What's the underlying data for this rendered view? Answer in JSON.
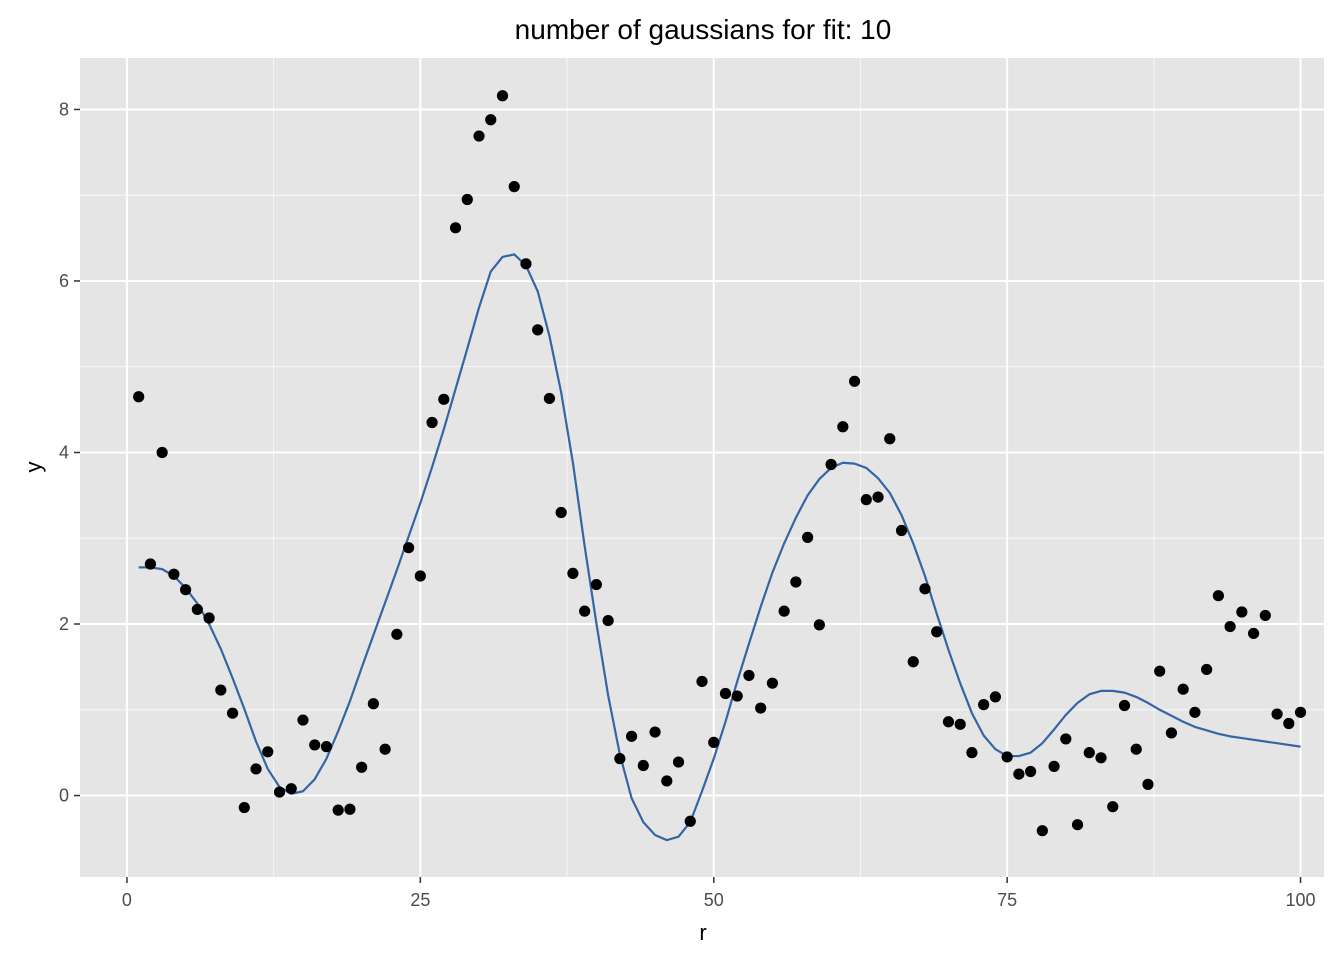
{
  "chart_data": {
    "type": "scatter",
    "title": "number of gaussians for fit: 10",
    "xlabel": "r",
    "ylabel": "y",
    "xlim": [
      -4,
      102
    ],
    "ylim": [
      -0.95,
      8.6
    ],
    "x_ticks": [
      0,
      25,
      50,
      75,
      100
    ],
    "x_tick_labels": [
      "0",
      "25",
      "50",
      "75",
      "100"
    ],
    "y_ticks": [
      0,
      2,
      4,
      6,
      8
    ],
    "y_tick_labels": [
      "0",
      "2",
      "4",
      "6",
      "8"
    ],
    "grid": true,
    "colors": {
      "panel_bg": "#e5e5e5",
      "grid_major": "#ffffff",
      "points": "#000000",
      "fit_line": "#3465a4"
    },
    "series": [
      {
        "kind": "points",
        "x": [
          1,
          2,
          3,
          4,
          5,
          6,
          7,
          8,
          9,
          10,
          11,
          12,
          13,
          14,
          15,
          16,
          17,
          18,
          19,
          20,
          21,
          22,
          23,
          24,
          25,
          26,
          27,
          28,
          29,
          30,
          31,
          32,
          33,
          34,
          35,
          36,
          37,
          38,
          39,
          40,
          41,
          42,
          43,
          44,
          45,
          46,
          47,
          48,
          49,
          50,
          51,
          52,
          53,
          54,
          55,
          56,
          57,
          58,
          59,
          60,
          61,
          62,
          63,
          64,
          65,
          66,
          67,
          68,
          69,
          70,
          71,
          72,
          73,
          74,
          75,
          76,
          77,
          78,
          79,
          80,
          81,
          82,
          83,
          84,
          85,
          86,
          87,
          88,
          89,
          90,
          91,
          92,
          93,
          94,
          95,
          96,
          97,
          98,
          99,
          100
        ],
        "y": [
          4.65,
          2.7,
          4.0,
          2.58,
          2.4,
          2.17,
          2.07,
          1.23,
          0.96,
          -0.14,
          0.31,
          0.51,
          0.04,
          0.08,
          0.88,
          0.59,
          0.57,
          -0.17,
          -0.16,
          0.33,
          1.07,
          0.54,
          1.88,
          2.89,
          2.56,
          4.35,
          4.62,
          6.62,
          6.95,
          7.69,
          7.88,
          8.16,
          7.1,
          6.2,
          5.43,
          4.63,
          3.3,
          2.59,
          2.15,
          2.46,
          2.04,
          0.43,
          0.69,
          0.35,
          0.74,
          0.17,
          0.39,
          -0.3,
          1.33,
          0.62,
          1.19,
          1.16,
          1.4,
          1.02,
          1.31,
          2.15,
          2.49,
          3.01,
          1.99,
          3.86,
          4.3,
          4.83,
          3.45,
          3.48,
          4.16,
          3.09,
          1.56,
          2.41,
          1.91,
          0.86,
          0.83,
          0.5,
          1.06,
          1.15,
          0.45,
          0.25,
          0.28,
          -0.41,
          0.34,
          0.66,
          -0.34,
          0.5,
          0.44,
          -0.13,
          1.05,
          0.54,
          0.13,
          1.45,
          0.73,
          1.24,
          0.97,
          1.47,
          2.33,
          1.97,
          2.14,
          1.89,
          2.1,
          0.95,
          0.84,
          0.97
        ]
      },
      {
        "kind": "line",
        "x": [
          1,
          2,
          3,
          4,
          5,
          6,
          7,
          8,
          9,
          10,
          11,
          12,
          13,
          14,
          15,
          16,
          17,
          18,
          19,
          20,
          21,
          22,
          23,
          24,
          25,
          26,
          27,
          28,
          29,
          30,
          31,
          32,
          33,
          34,
          35,
          36,
          37,
          38,
          39,
          40,
          41,
          42,
          43,
          44,
          45,
          46,
          47,
          48,
          49,
          50,
          51,
          52,
          53,
          54,
          55,
          56,
          57,
          58,
          59,
          60,
          61,
          62,
          63,
          64,
          65,
          66,
          67,
          68,
          69,
          70,
          71,
          72,
          73,
          74,
          75,
          76,
          77,
          78,
          79,
          80,
          81,
          82,
          83,
          84,
          85,
          86,
          87,
          88,
          89,
          90,
          91,
          92,
          93,
          94,
          95,
          96,
          97,
          98,
          99,
          100
        ],
        "y": [
          2.66,
          2.66,
          2.64,
          2.56,
          2.42,
          2.24,
          2.0,
          1.71,
          1.37,
          1.01,
          0.63,
          0.31,
          0.1,
          0.02,
          0.05,
          0.19,
          0.43,
          0.75,
          1.1,
          1.49,
          1.87,
          2.25,
          2.63,
          3.02,
          3.41,
          3.83,
          4.27,
          4.74,
          5.21,
          5.69,
          6.11,
          6.28,
          6.31,
          6.18,
          5.88,
          5.36,
          4.7,
          3.88,
          2.91,
          2.01,
          1.17,
          0.48,
          -0.03,
          -0.31,
          -0.46,
          -0.52,
          -0.48,
          -0.31,
          0.05,
          0.43,
          0.86,
          1.33,
          1.77,
          2.2,
          2.6,
          2.94,
          3.24,
          3.5,
          3.69,
          3.82,
          3.88,
          3.87,
          3.82,
          3.7,
          3.53,
          3.27,
          2.94,
          2.56,
          2.12,
          1.7,
          1.31,
          0.96,
          0.7,
          0.54,
          0.46,
          0.46,
          0.5,
          0.61,
          0.77,
          0.94,
          1.08,
          1.18,
          1.22,
          1.22,
          1.2,
          1.15,
          1.08,
          1.0,
          0.93,
          0.86,
          0.8,
          0.76,
          0.72,
          0.69,
          0.67,
          0.65,
          0.63,
          0.61,
          0.59,
          0.57
        ]
      }
    ]
  }
}
